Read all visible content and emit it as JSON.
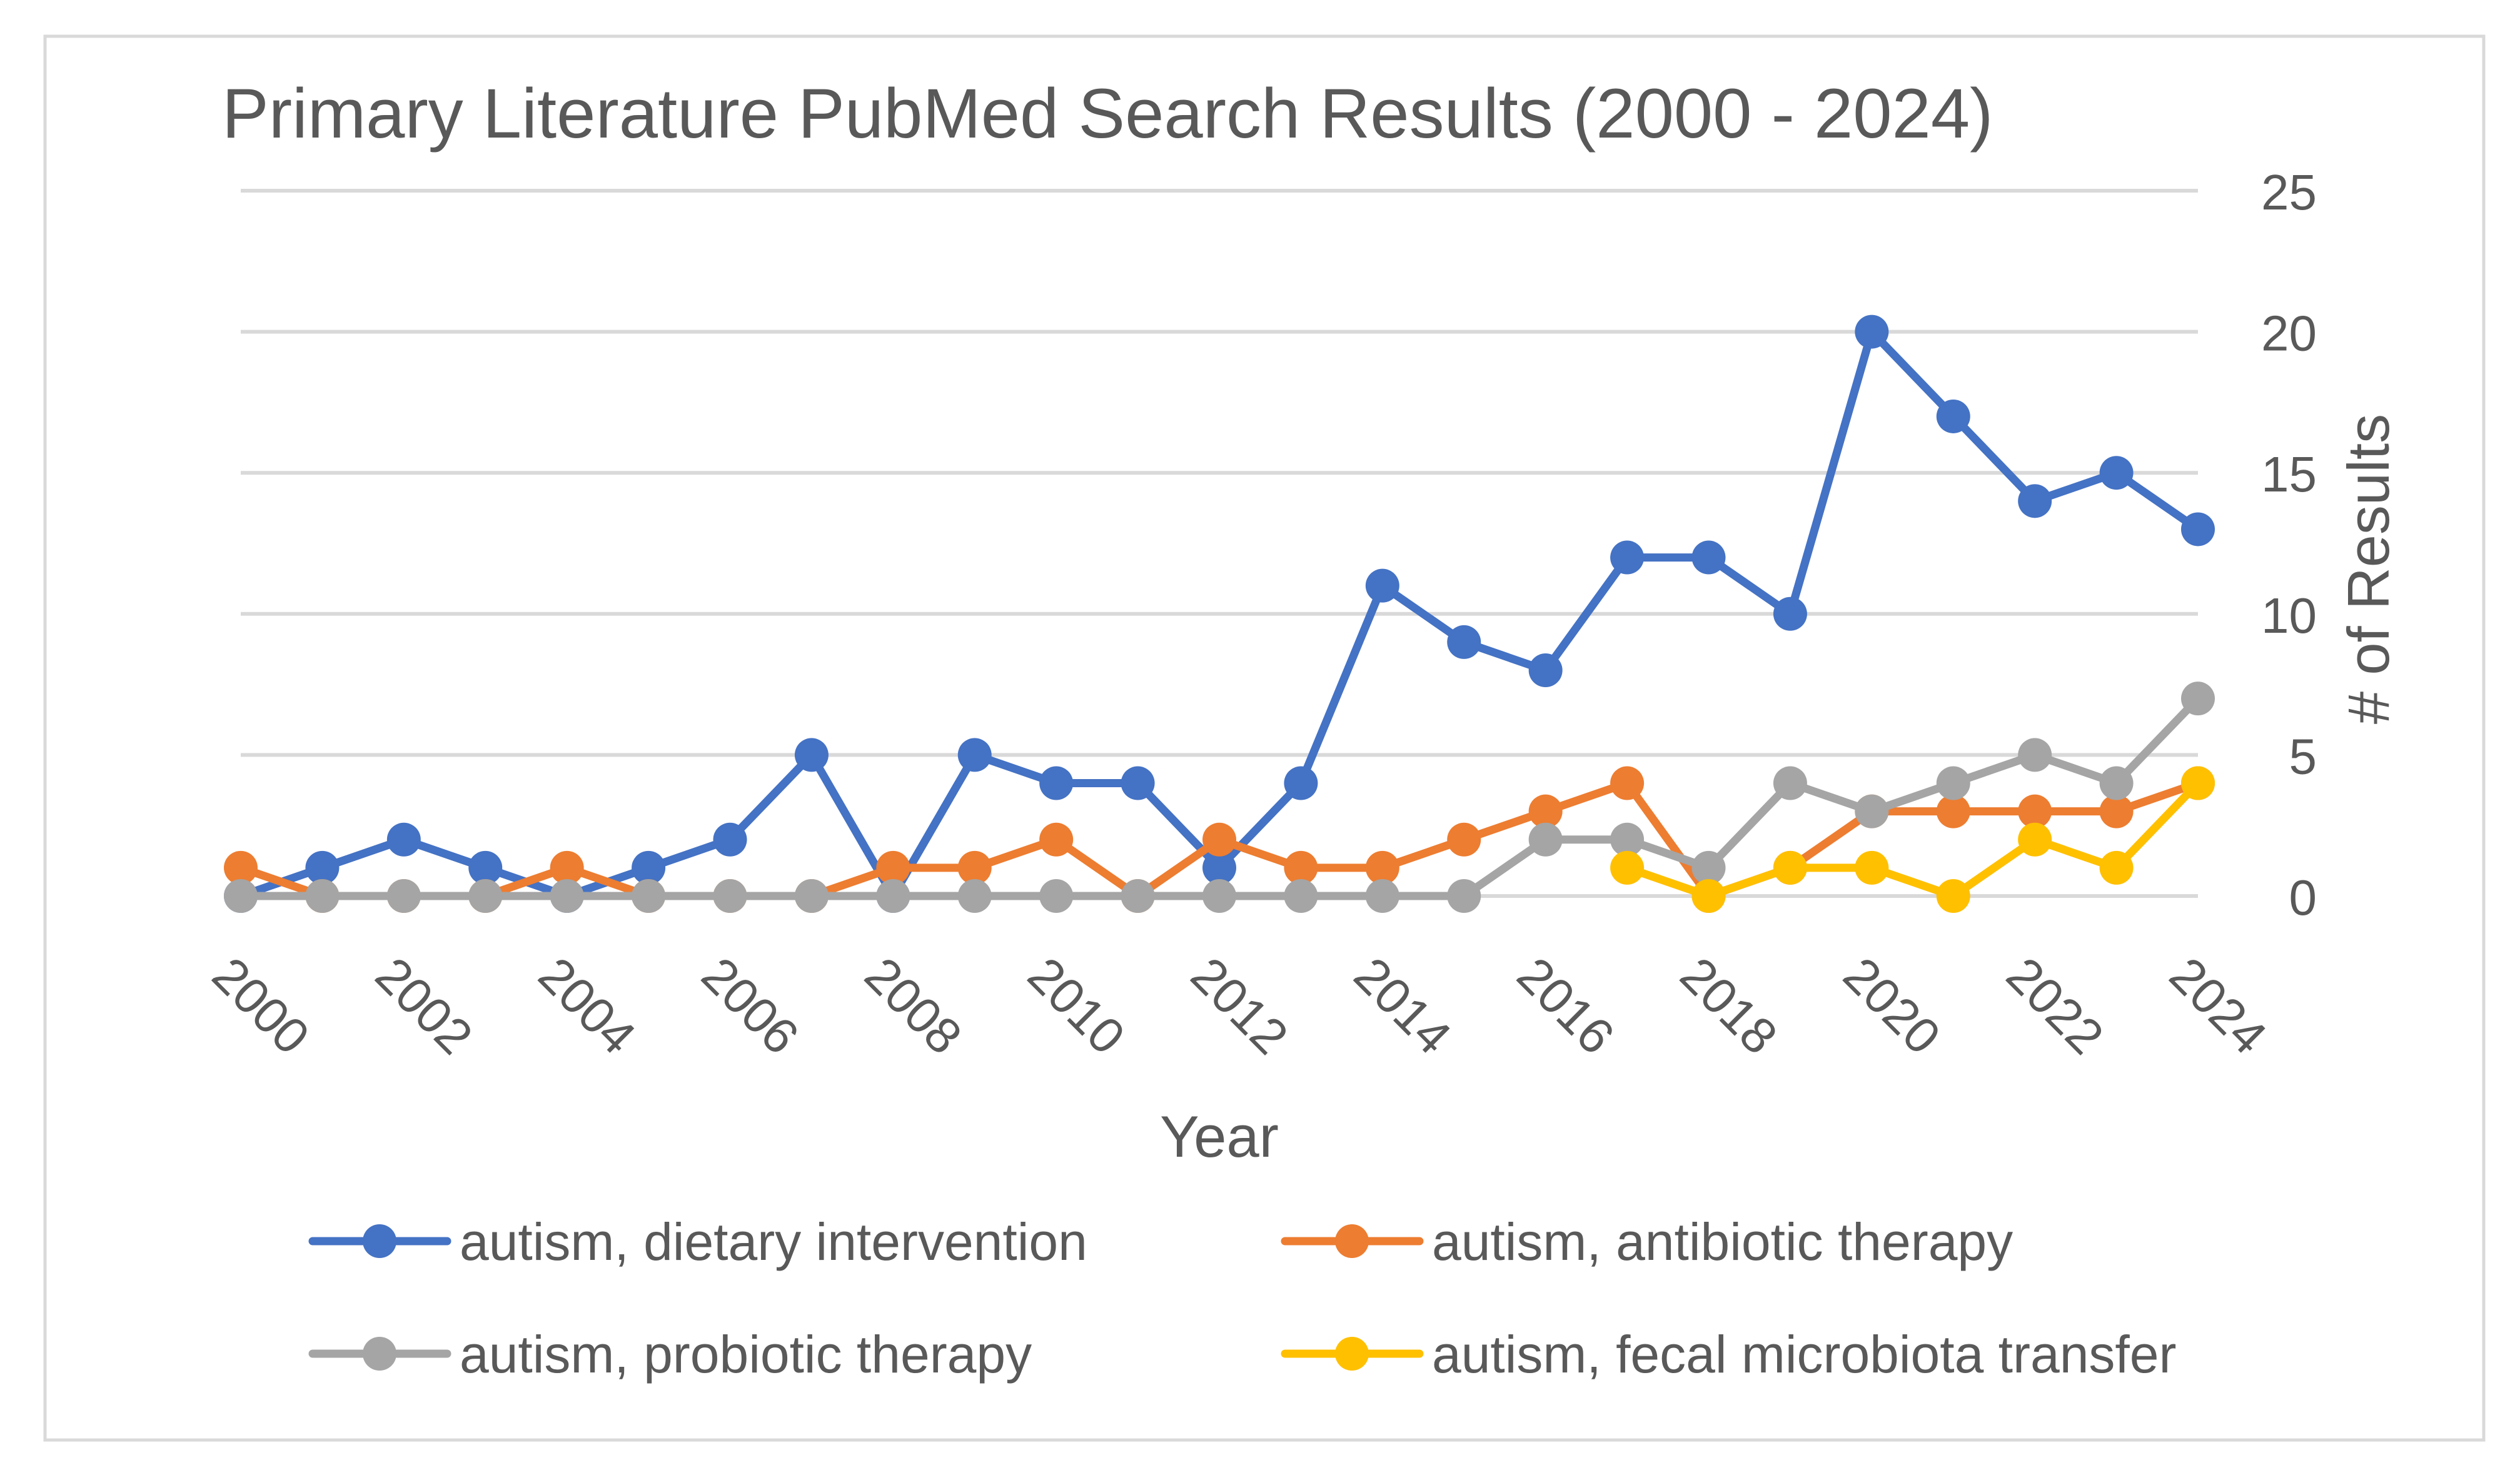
{
  "chart_data": {
    "type": "line",
    "title": "Primary Literature PubMed Search Results (2000 - 2024)",
    "xlabel": "Year",
    "ylabel": "# of Results",
    "ylim": [
      0,
      25
    ],
    "yticks": [
      0,
      5,
      10,
      15,
      20,
      25
    ],
    "x": [
      2000,
      2001,
      2002,
      2003,
      2004,
      2005,
      2006,
      2007,
      2008,
      2009,
      2010,
      2011,
      2012,
      2013,
      2014,
      2015,
      2016,
      2017,
      2018,
      2019,
      2020,
      2021,
      2022,
      2023,
      2024
    ],
    "xtick_labels": [
      "2000",
      "2002",
      "2004",
      "2006",
      "2008",
      "2010",
      "2012",
      "2014",
      "2016",
      "2018",
      "2020",
      "2022",
      "2024"
    ],
    "grid": true,
    "legend_position": "bottom",
    "series": [
      {
        "name": "autism, dietary intervention",
        "color": "#4472C4",
        "values": [
          0,
          1,
          2,
          1,
          0,
          1,
          2,
          5,
          0,
          5,
          4,
          4,
          1,
          4,
          11,
          9,
          8,
          12,
          12,
          10,
          20,
          17,
          14,
          15,
          13
        ]
      },
      {
        "name": "autism, antibiotic therapy",
        "color": "#ED7D31",
        "values": [
          1,
          0,
          0,
          0,
          1,
          0,
          0,
          0,
          1,
          1,
          2,
          0,
          2,
          1,
          1,
          2,
          3,
          4,
          0,
          1,
          3,
          3,
          3,
          3,
          4
        ]
      },
      {
        "name": "autism, probiotic therapy",
        "color": "#A5A5A5",
        "values": [
          0,
          0,
          0,
          0,
          0,
          0,
          0,
          0,
          0,
          0,
          0,
          0,
          0,
          0,
          0,
          0,
          2,
          2,
          1,
          4,
          3,
          4,
          5,
          4,
          7
        ]
      },
      {
        "name": "autism, fecal microbiota transfer",
        "color": "#FFC000",
        "values": [
          null,
          null,
          null,
          null,
          null,
          null,
          null,
          null,
          null,
          null,
          null,
          null,
          null,
          null,
          null,
          null,
          null,
          1,
          0,
          1,
          1,
          0,
          2,
          1,
          4
        ]
      }
    ]
  }
}
